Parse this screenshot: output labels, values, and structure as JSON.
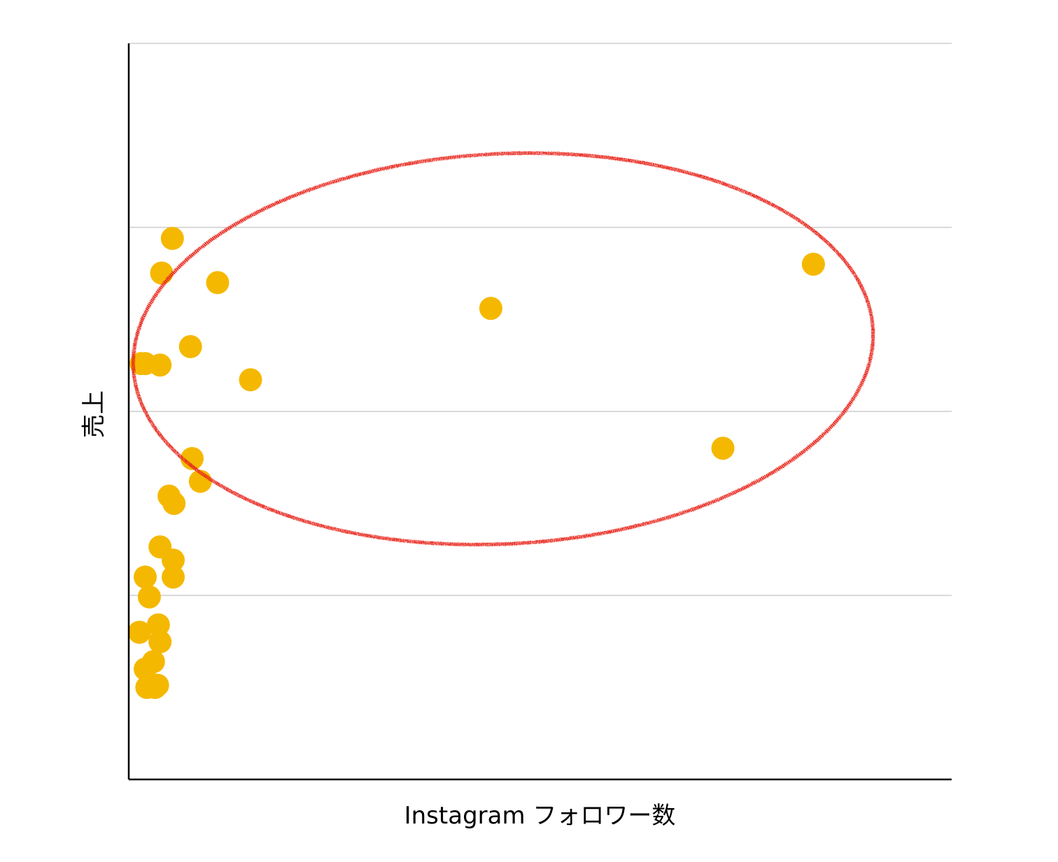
{
  "chart_data": {
    "type": "scatter",
    "title": "",
    "xlabel": "Instagram フォロワー数",
    "ylabel": "売上",
    "xlim": [
      0,
      100
    ],
    "ylim": [
      0,
      100
    ],
    "grid": {
      "horizontal": true,
      "vertical": false,
      "y_gridlines": [
        25,
        50,
        75,
        100
      ]
    },
    "series": [
      {
        "color": "#F5B800",
        "points": [
          {
            "x": 5.3,
            "y": 73.5
          },
          {
            "x": 4.0,
            "y": 68.8
          },
          {
            "x": 10.8,
            "y": 67.5
          },
          {
            "x": 44.0,
            "y": 64.0
          },
          {
            "x": 83.2,
            "y": 70.0
          },
          {
            "x": 7.5,
            "y": 58.8
          },
          {
            "x": 1.5,
            "y": 56.5
          },
          {
            "x": 2.0,
            "y": 56.5
          },
          {
            "x": 3.8,
            "y": 56.3
          },
          {
            "x": 14.8,
            "y": 54.3
          },
          {
            "x": 72.2,
            "y": 45.0
          },
          {
            "x": 7.7,
            "y": 43.6
          },
          {
            "x": 8.7,
            "y": 40.5
          },
          {
            "x": 4.9,
            "y": 38.5
          },
          {
            "x": 5.5,
            "y": 37.5
          },
          {
            "x": 3.8,
            "y": 31.6
          },
          {
            "x": 5.4,
            "y": 29.8
          },
          {
            "x": 2.0,
            "y": 27.5
          },
          {
            "x": 5.4,
            "y": 27.5
          },
          {
            "x": 2.5,
            "y": 24.8
          },
          {
            "x": 3.6,
            "y": 21.0
          },
          {
            "x": 1.3,
            "y": 20.0
          },
          {
            "x": 3.8,
            "y": 18.7
          },
          {
            "x": 3.0,
            "y": 16.0
          },
          {
            "x": 2.0,
            "y": 15.0
          },
          {
            "x": 3.5,
            "y": 12.8
          },
          {
            "x": 2.2,
            "y": 12.5
          },
          {
            "x": 3.2,
            "y": 12.5
          }
        ]
      }
    ],
    "annotation": {
      "shape": "ellipse",
      "color": "#E8261C",
      "center": {
        "x": 45.5,
        "y": 58.5
      },
      "radius_x": 45.0,
      "radius_y": 26.5,
      "rotation_deg": -3
    }
  }
}
